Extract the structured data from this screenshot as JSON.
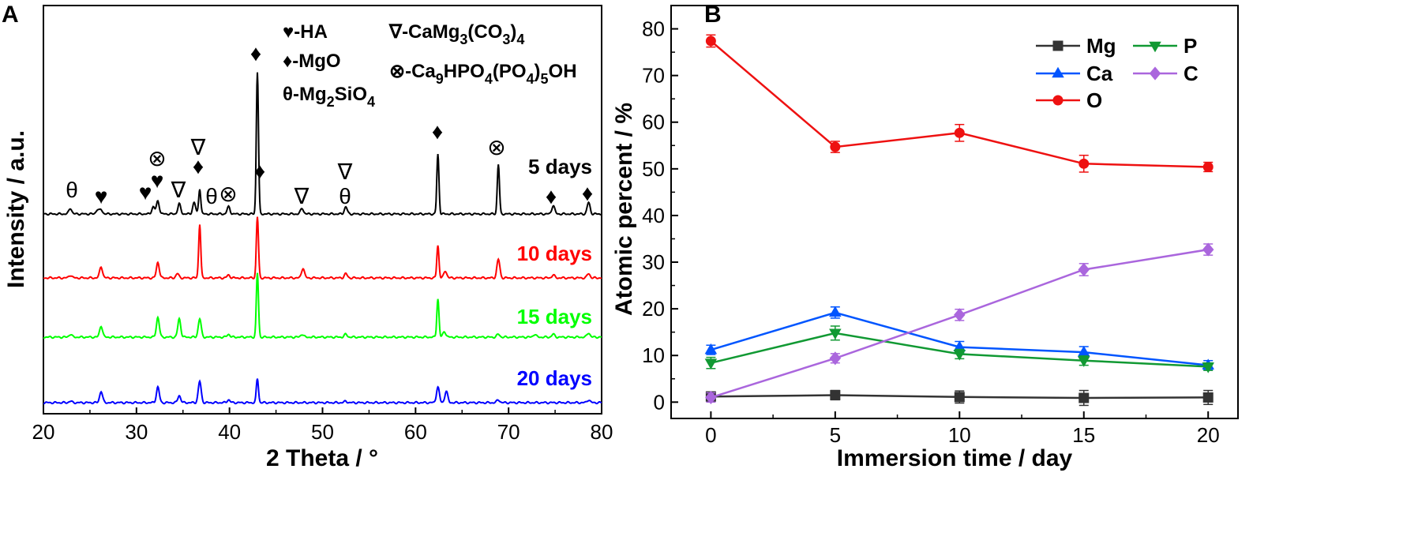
{
  "chart_data": [
    {
      "panel": "A",
      "type": "line",
      "title": "",
      "xlabel": "2 Theta / °",
      "ylabel": "Intensity / a.u.",
      "xlim": [
        20,
        80
      ],
      "xticks": [
        20,
        30,
        40,
        50,
        60,
        70,
        80
      ],
      "yticks_shown": false,
      "phase_legend": [
        {
          "symbol": "♥",
          "label": "-HA"
        },
        {
          "symbol": "♦",
          "label": "-MgO"
        },
        {
          "symbol": "θ",
          "label": "-Mg",
          "sub": "2",
          "rest": "SiO",
          "sub2": "4"
        },
        {
          "symbol": "∇",
          "label": "-CaMg",
          "sub": "3",
          "rest": "(CO",
          "sub2": "3",
          "rest2": ")",
          "sub3": "4"
        },
        {
          "symbol": "⊗",
          "label": "-Ca",
          "sub": "9",
          "rest": "HPO",
          "sub2": "4",
          "rest2": "(PO",
          "sub3": "4",
          "rest3": ")",
          "sub4": "5",
          "rest4": "OH"
        }
      ],
      "series": [
        {
          "name": "5 days",
          "color": "#000000",
          "offset": 0.75,
          "peaks": [
            [
              22.9,
              0.04
            ],
            [
              25.8,
              0.03
            ],
            [
              26.2,
              0.03
            ],
            [
              31.8,
              0.05
            ],
            [
              32.3,
              0.09
            ],
            [
              34.6,
              0.07
            ],
            [
              36.2,
              0.08
            ],
            [
              36.8,
              0.18
            ],
            [
              39.9,
              0.05
            ],
            [
              43.0,
              1.0
            ],
            [
              47.8,
              0.04
            ],
            [
              52.5,
              0.05
            ],
            [
              62.4,
              0.42
            ],
            [
              68.9,
              0.35
            ],
            [
              74.8,
              0.06
            ],
            [
              78.6,
              0.08
            ]
          ]
        },
        {
          "name": "10 days",
          "color": "#ff0000",
          "offset": 0.5,
          "peaks": [
            [
              22.9,
              0.02
            ],
            [
              26.2,
              0.08
            ],
            [
              32.3,
              0.11
            ],
            [
              34.4,
              0.03
            ],
            [
              36.8,
              0.38
            ],
            [
              39.9,
              0.02
            ],
            [
              43.0,
              0.43
            ],
            [
              47.9,
              0.07
            ],
            [
              52.5,
              0.03
            ],
            [
              62.4,
              0.23
            ],
            [
              63.2,
              0.05
            ],
            [
              68.9,
              0.13
            ],
            [
              74.8,
              0.02
            ],
            [
              78.6,
              0.03
            ]
          ]
        },
        {
          "name": "15 days",
          "color": "#00ff00",
          "offset": 0.25,
          "peaks": [
            [
              22.9,
              0.02
            ],
            [
              26.2,
              0.08
            ],
            [
              32.3,
              0.14
            ],
            [
              34.6,
              0.13
            ],
            [
              36.8,
              0.13
            ],
            [
              39.9,
              0.02
            ],
            [
              43.0,
              0.45
            ],
            [
              47.8,
              0.02
            ],
            [
              52.5,
              0.02
            ],
            [
              62.4,
              0.27
            ],
            [
              63.1,
              0.04
            ],
            [
              68.9,
              0.02
            ],
            [
              72.8,
              0.02
            ],
            [
              74.8,
              0.02
            ],
            [
              78.6,
              0.03
            ]
          ]
        },
        {
          "name": "20 days",
          "color": "#0000ff",
          "offset": 0.0,
          "peaks": [
            [
              22.9,
              0.01
            ],
            [
              26.2,
              0.08
            ],
            [
              32.3,
              0.11
            ],
            [
              34.6,
              0.05
            ],
            [
              36.8,
              0.15
            ],
            [
              39.9,
              0.02
            ],
            [
              43.0,
              0.17
            ],
            [
              52.5,
              0.01
            ],
            [
              62.4,
              0.11
            ],
            [
              63.3,
              0.08
            ],
            [
              68.9,
              0.02
            ],
            [
              78.6,
              0.02
            ]
          ]
        }
      ],
      "annotations": [
        {
          "symbol": "θ",
          "x": 23.0,
          "series": "5 days"
        },
        {
          "symbol": "♥",
          "x": 26.2,
          "series": "5 days"
        },
        {
          "symbol": "♥",
          "x": 31.2,
          "series": "5 days"
        },
        {
          "symbol": "♥",
          "x": 32.3,
          "series": "5 days"
        },
        {
          "symbol": "⊗",
          "x": 32.3,
          "series": "5 days"
        },
        {
          "symbol": "∇",
          "x": 34.6,
          "series": "5 days"
        },
        {
          "symbol": "♦",
          "x": 36.8,
          "series": "5 days"
        },
        {
          "symbol": "∇",
          "x": 36.8,
          "series": "5 days"
        },
        {
          "symbol": "θ",
          "x": 38.4,
          "series": "5 days"
        },
        {
          "symbol": "⊗",
          "x": 40.0,
          "series": "5 days"
        },
        {
          "symbol": "♦",
          "x": 43.0,
          "series": "5 days"
        },
        {
          "symbol": "♦",
          "x": 43.4,
          "series": "5 days"
        },
        {
          "symbol": "∇",
          "x": 47.8,
          "series": "5 days"
        },
        {
          "symbol": "θ",
          "x": 52.5,
          "series": "5 days"
        },
        {
          "symbol": "∇",
          "x": 52.5,
          "series": "5 days"
        },
        {
          "symbol": "♦",
          "x": 62.4,
          "series": "5 days"
        },
        {
          "symbol": "⊗",
          "x": 68.9,
          "series": "5 days"
        },
        {
          "symbol": "♦",
          "x": 74.8,
          "series": "5 days"
        },
        {
          "symbol": "♦",
          "x": 78.6,
          "series": "5 days"
        }
      ]
    },
    {
      "panel": "B",
      "type": "line",
      "title": "",
      "xlabel": "Immersion time / day",
      "ylabel": "Atomic percent / %",
      "xlim": [
        -1.6,
        21.2
      ],
      "ylim": [
        -3.5,
        85
      ],
      "xticks": [
        0,
        5,
        10,
        15,
        20
      ],
      "yticks": [
        0,
        10,
        20,
        30,
        40,
        50,
        60,
        70,
        80
      ],
      "x": [
        0,
        5,
        10,
        15,
        20
      ],
      "series": [
        {
          "name": "Mg",
          "color": "#333333",
          "marker": "square",
          "values": [
            1.2,
            1.5,
            1.1,
            0.9,
            1.0
          ],
          "errors": [
            1.0,
            1.0,
            1.3,
            1.6,
            1.5
          ]
        },
        {
          "name": "Ca",
          "color": "#0055ff",
          "marker": "triangle-up",
          "values": [
            11.2,
            19.2,
            11.8,
            10.7,
            7.9
          ],
          "errors": [
            1.0,
            1.2,
            1.2,
            1.2,
            1.0
          ]
        },
        {
          "name": "O",
          "color": "#ee1111",
          "marker": "circle",
          "values": [
            77.4,
            54.7,
            57.7,
            51.1,
            50.4
          ],
          "errors": [
            1.3,
            1.2,
            1.8,
            1.8,
            1.0
          ]
        },
        {
          "name": "P",
          "color": "#119933",
          "marker": "triangle-down",
          "values": [
            8.4,
            14.8,
            10.3,
            8.9,
            7.6
          ],
          "errors": [
            1.2,
            1.5,
            1.0,
            1.0,
            0.8
          ]
        },
        {
          "name": "C",
          "color": "#aa66dd",
          "marker": "diamond",
          "values": [
            1.0,
            9.4,
            18.7,
            28.4,
            32.7
          ],
          "errors": [
            1.0,
            1.0,
            1.2,
            1.3,
            1.2
          ]
        }
      ]
    }
  ],
  "panel_labels": {
    "a": "A",
    "b": "B"
  }
}
